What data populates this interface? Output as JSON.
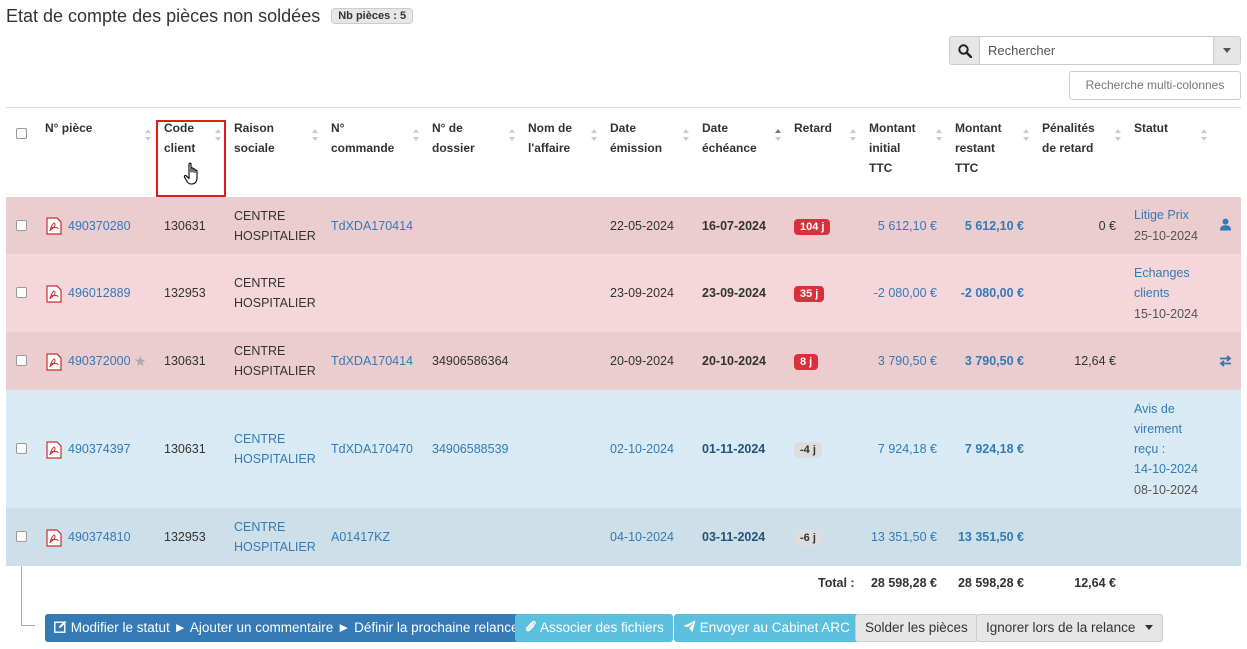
{
  "header": {
    "title": "Etat de compte des pièces non soldées",
    "badge": "Nb pièces : 5"
  },
  "search": {
    "placeholder": "Rechercher",
    "multi_column_label": "Recherche multi-colonnes"
  },
  "columns": {
    "piece": "N° pièce",
    "code_client_1": "Code",
    "code_client_2": "client",
    "raison_1": "Raison",
    "raison_2": "sociale",
    "commande_1": "N°",
    "commande_2": "commande",
    "dossier_1": "N° de",
    "dossier_2": "dossier",
    "affaire_1": "Nom de",
    "affaire_2": "l'affaire",
    "emission_1": "Date",
    "emission_2": "émission",
    "echeance_1": "Date",
    "echeance_2": "échéance",
    "retard": "Retard",
    "initial_1": "Montant",
    "initial_2": "initial",
    "initial_3": "TTC",
    "restant_1": "Montant",
    "restant_2": "restant",
    "restant_3": "TTC",
    "penalites_1": "Pénalités",
    "penalites_2": "de retard",
    "statut": "Statut"
  },
  "rows": [
    {
      "piece": "490370280",
      "client": "130631",
      "raison_1": "CENTRE",
      "raison_2": "HOSPITALIER",
      "commande": "TdXDA170414",
      "dossier": "",
      "emission": "22-05-2024",
      "echeance": "16-07-2024",
      "retard": "104 j",
      "initial": "5 612,10 €",
      "restant": "5 612,10 €",
      "penalites": "0 €",
      "statut_lines": [
        "Litige Prix"
      ],
      "statut_date": "25-10-2024"
    },
    {
      "piece": "496012889",
      "client": "132953",
      "raison_1": "CENTRE",
      "raison_2": "HOSPITALIER",
      "commande": "",
      "dossier": "",
      "emission": "23-09-2024",
      "echeance": "23-09-2024",
      "retard": "35 j",
      "initial": "-2 080,00 €",
      "restant": "-2 080,00 €",
      "penalites": "",
      "statut_lines": [
        "Echanges",
        "clients"
      ],
      "statut_date": "15-10-2024"
    },
    {
      "piece": "490372000",
      "client": "130631",
      "raison_1": "CENTRE",
      "raison_2": "HOSPITALIER",
      "commande": "TdXDA170414",
      "dossier": "34906586364",
      "emission": "20-09-2024",
      "echeance": "20-10-2024",
      "retard": "8 j",
      "initial": "3 790,50 €",
      "restant": "3 790,50 €",
      "penalites": "12,64 €",
      "statut_lines": [],
      "statut_date": ""
    },
    {
      "piece": "490374397",
      "client": "130631",
      "raison_1": "CENTRE",
      "raison_2": "HOSPITALIER",
      "commande": "TdXDA170470",
      "dossier": "34906588539",
      "emission": "02-10-2024",
      "echeance": "01-11-2024",
      "retard": "-4 j",
      "initial": "7 924,18 €",
      "restant": "7 924,18 €",
      "penalites": "",
      "statut_lines": [
        "Avis de",
        "virement",
        "reçu :",
        "14-10-2024"
      ],
      "statut_date": "08-10-2024"
    },
    {
      "piece": "490374810",
      "client": "132953",
      "raison_1": "CENTRE",
      "raison_2": "HOSPITALIER",
      "commande": "A01417KZ",
      "dossier": "",
      "emission": "04-10-2024",
      "echeance": "03-11-2024",
      "retard": "-6 j",
      "initial": "13 351,50 €",
      "restant": "13 351,50 €",
      "penalites": "",
      "statut_lines": [],
      "statut_date": ""
    }
  ],
  "totals": {
    "label": "Total :",
    "initial": "28 598,28 €",
    "restant": "28 598,28 €",
    "penalites": "12,64 €"
  },
  "actions": {
    "modify": "Modifier le statut ► Ajouter un commentaire ► Définir la prochaine relance",
    "attach": "Associer des fichiers",
    "send": "Envoyer au Cabinet ARC",
    "settle": "Solder les pièces",
    "ignore": "Ignorer lors de la relance"
  },
  "colors": {
    "row_late_dark": "#ebcccf",
    "row_late_light": "#f5d6da",
    "row_info_light": "#d8ebf5",
    "row_info_dark": "#cde0ea",
    "late_badge": "#d9303b",
    "link": "#337ab7"
  }
}
